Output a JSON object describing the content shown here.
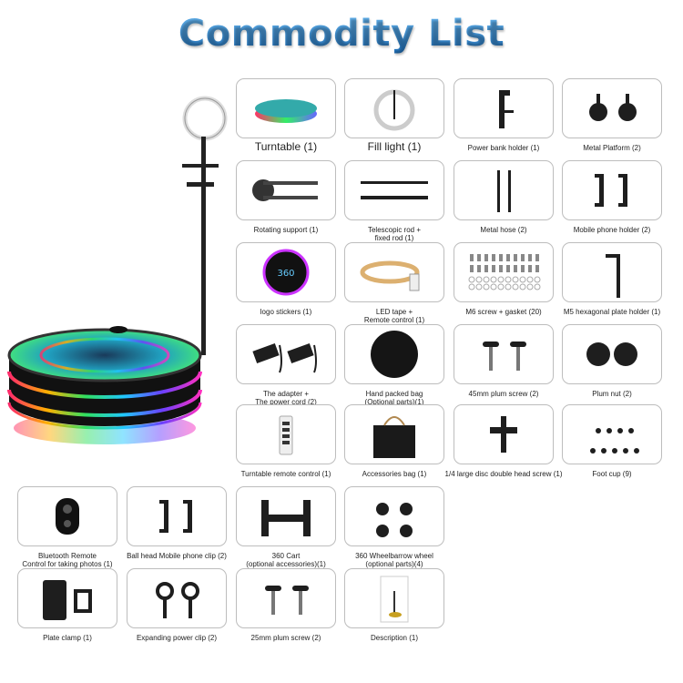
{
  "title": "Commodity List",
  "colors": {
    "title": "#3a8fd8",
    "card_border": "#bdbdbd",
    "item_dark": "#1e1e1e"
  },
  "hero": {
    "icon": "photo-booth-360-turntable-with-ring-light"
  },
  "items": [
    {
      "label": "Turntable (1)",
      "icon": "turntable",
      "big": true
    },
    {
      "label": "Fill light (1)",
      "icon": "ring-light",
      "big": true
    },
    {
      "label": "Power bank holder (1)",
      "icon": "holder"
    },
    {
      "label": "Metal Platform (2)",
      "icon": "ball-head"
    },
    {
      "label": "Rotating support (1)",
      "icon": "rotating-arm"
    },
    {
      "label": "Telescopic rod +\nfixed rod (1)",
      "icon": "rods"
    },
    {
      "label": "Metal hose (2)",
      "icon": "hose"
    },
    {
      "label": "Mobile phone holder (2)",
      "icon": "phone-clamp"
    },
    {
      "label": "logo stickers (1)",
      "icon": "sticker"
    },
    {
      "label": "LED tape +\nRemote control (1)",
      "icon": "led-tape"
    },
    {
      "label": "M6 screw + gasket (20)",
      "icon": "screws"
    },
    {
      "label": "M5 hexagonal plate holder (1)",
      "icon": "hex-key"
    },
    {
      "label": "The adapter +\nThe power cord (2)",
      "icon": "adapter"
    },
    {
      "label": "Hand packed bag\n(Optional parts)(1)",
      "icon": "round-bag"
    },
    {
      "label": "45mm plum screw (2)",
      "icon": "plum-screw"
    },
    {
      "label": "Plum nut (2)",
      "icon": "plum-nut"
    },
    {
      "label": "Turntable remote control (1)",
      "icon": "remote"
    },
    {
      "label": "Accessories bag (1)",
      "icon": "tote-bag"
    },
    {
      "label": "1/4 large disc double head screw (1)",
      "icon": "disc-screw"
    },
    {
      "label": "Foot cup (9)",
      "icon": "foot-cups"
    },
    {
      "label": "Bluetooth Remote\nControl for taking photos (1)",
      "icon": "bt-remote"
    },
    {
      "label": "Ball head Mobile phone clip (2)",
      "icon": "phone-clamp"
    },
    {
      "label": "360 Cart\n(optional accessories)(1)",
      "icon": "cart"
    },
    {
      "label": "360 Wheelbarrow wheel\n(optional parts)(4)",
      "icon": "wheels"
    },
    {
      "label": "Plate clamp (1)",
      "icon": "tablet-clamp"
    },
    {
      "label": "Expanding power clip (2)",
      "icon": "power-clip"
    },
    {
      "label": "25mm plum screw (2)",
      "icon": "plum-screw"
    },
    {
      "label": "Description (1)",
      "icon": "manual"
    }
  ]
}
